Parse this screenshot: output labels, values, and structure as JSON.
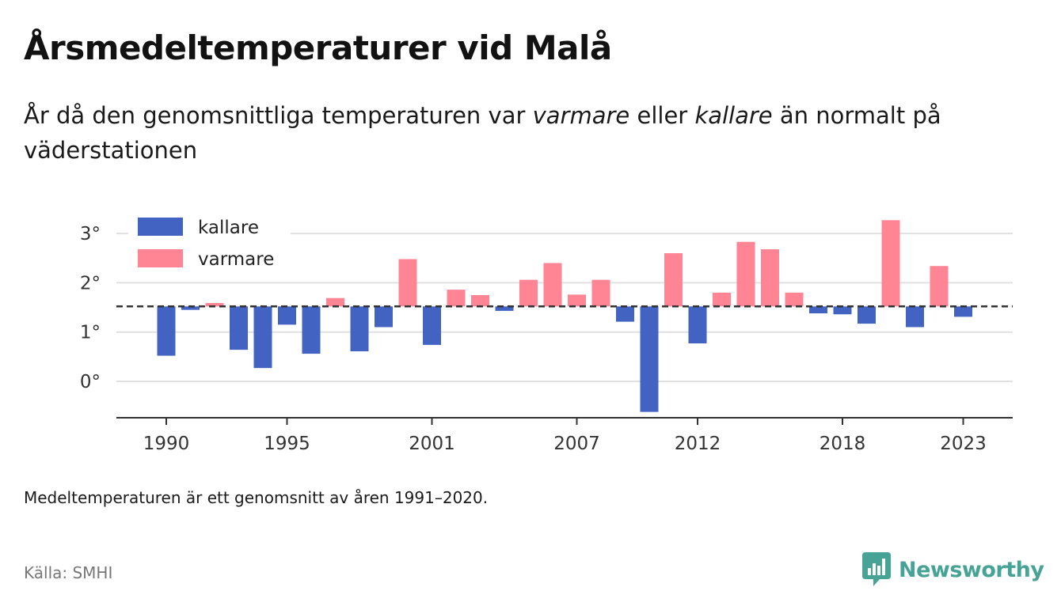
{
  "title": "Årsmedeltemperaturer vid Malå",
  "subtitle": {
    "part1": "År då den genomsnittliga temperaturen var ",
    "warm_word": "varmare",
    "part2": " eller ",
    "cold_word": "kallare",
    "part3": " än normalt på väderstationen"
  },
  "note": "Medeltemperaturen är ett genomsnitt av åren 1991–2020.",
  "source": "Källa: SMHI",
  "brand": "Newsworthy",
  "colors": {
    "cold": "#4263c2",
    "warm": "#ff8595",
    "grid": "#e0e0e0",
    "axis": "#333333",
    "reference": "#333333",
    "brand": "#47a396"
  },
  "chart_data": {
    "type": "bar",
    "title": "Årsmedeltemperaturer vid Malå",
    "xlabel": "",
    "ylabel": "",
    "baseline": 1.52,
    "baseline_style": "dashed",
    "ylim": [
      -0.7,
      3.5
    ],
    "xlim": [
      1989,
      2025
    ],
    "y_ticks": [
      0,
      1,
      2,
      3
    ],
    "y_tick_labels": [
      "0°",
      "1°",
      "2°",
      "3°"
    ],
    "x_ticks": [
      1990,
      1995,
      2001,
      2007,
      2012,
      2018,
      2023
    ],
    "x_tick_labels": [
      "1990",
      "1995",
      "2001",
      "2007",
      "2012",
      "2018",
      "2023"
    ],
    "grid": "horizontal",
    "legend_position": "top-left",
    "series": [
      {
        "name": "kallare",
        "color": "#4263c2"
      },
      {
        "name": "varmare",
        "color": "#ff8595"
      }
    ],
    "x": [
      1990,
      1991,
      1992,
      1993,
      1994,
      1995,
      1996,
      1997,
      1998,
      1999,
      2000,
      2001,
      2002,
      2003,
      2004,
      2005,
      2006,
      2007,
      2008,
      2009,
      2010,
      2011,
      2012,
      2013,
      2014,
      2015,
      2016,
      2017,
      2018,
      2019,
      2020,
      2021,
      2022,
      2023
    ],
    "values": [
      0.52,
      1.45,
      1.59,
      0.64,
      0.27,
      1.15,
      0.56,
      1.69,
      0.61,
      1.1,
      2.48,
      0.74,
      1.86,
      1.75,
      1.43,
      2.06,
      2.4,
      1.76,
      2.06,
      1.21,
      -0.62,
      2.6,
      0.77,
      1.8,
      2.83,
      2.68,
      1.8,
      1.38,
      1.36,
      1.17,
      3.27,
      1.1,
      2.34,
      1.31
    ]
  }
}
